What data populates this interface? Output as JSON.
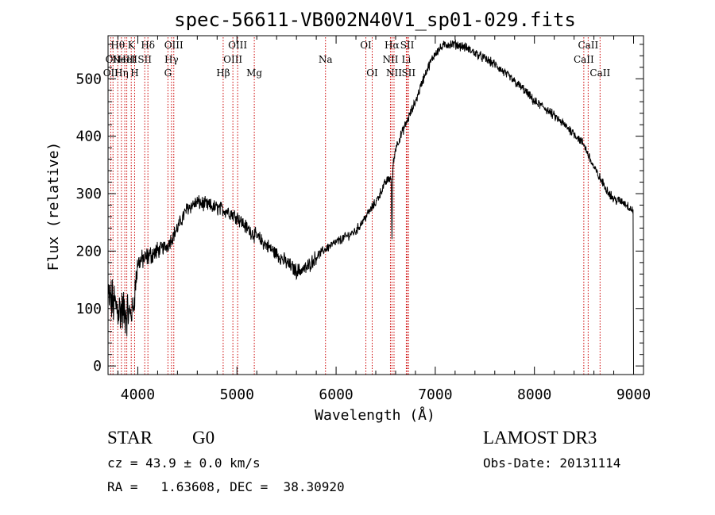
{
  "chart_data": {
    "type": "line",
    "title": "spec-56611-VB002N40V1_sp01-029.fits",
    "xlabel": "Wavelength (Å)",
    "ylabel": "Flux (relative)",
    "xlim": [
      3700,
      9100
    ],
    "ylim": [
      -15,
      575
    ],
    "xticks": [
      4000,
      5000,
      6000,
      7000,
      8000,
      9000
    ],
    "xtick_labels": [
      "4000",
      "5000",
      "6000",
      "7000",
      "8000",
      "9000"
    ],
    "yticks": [
      0,
      100,
      200,
      300,
      400,
      500
    ],
    "ytick_labels": [
      "0",
      "100",
      "200",
      "300",
      "400",
      "500"
    ],
    "spectrum_trend": {
      "x": [
        3700,
        3750,
        3800,
        3850,
        3900,
        3950,
        4000,
        4100,
        4200,
        4300,
        4400,
        4500,
        4600,
        4700,
        4800,
        4900,
        5000,
        5100,
        5200,
        5300,
        5400,
        5500,
        5600,
        5700,
        5800,
        5900,
        6000,
        6100,
        6200,
        6300,
        6400,
        6500,
        6560,
        6600,
        6700,
        6800,
        6900,
        7000,
        7100,
        7200,
        7300,
        7400,
        7500,
        7600,
        7700,
        7800,
        7900,
        8000,
        8100,
        8200,
        8300,
        8400,
        8500,
        8600,
        8700,
        8800,
        8900,
        9000
      ],
      "y": [
        120,
        110,
        100,
        95,
        90,
        95,
        180,
        190,
        200,
        210,
        240,
        275,
        285,
        280,
        275,
        270,
        260,
        240,
        225,
        210,
        195,
        180,
        165,
        170,
        190,
        205,
        215,
        225,
        235,
        260,
        285,
        320,
        330,
        380,
        420,
        460,
        510,
        545,
        560,
        560,
        555,
        545,
        535,
        525,
        510,
        495,
        480,
        460,
        450,
        435,
        420,
        405,
        385,
        345,
        315,
        290,
        285,
        270
      ]
    },
    "noise_amplitude_note": "high-frequency noise, strongest below 4000 Å",
    "absorption_features": [
      {
        "x": 6563,
        "depth": 110,
        "label": "Hα"
      }
    ],
    "spectral_lines": [
      {
        "x": 3727,
        "label": "OII",
        "row": 2
      },
      {
        "x": 3750,
        "label": "OII",
        "row": 1
      },
      {
        "x": 3798,
        "label": "Hθ",
        "row": 0
      },
      {
        "x": 3835,
        "label": "Hη",
        "row": 2
      },
      {
        "x": 3869,
        "label": "NeIII",
        "row": 1
      },
      {
        "x": 3889,
        "label": "HeI",
        "row": 1
      },
      {
        "x": 3934,
        "label": "K",
        "row": 0
      },
      {
        "x": 3968,
        "label": "H",
        "row": 2
      },
      {
        "x": 4070,
        "label": "SII",
        "row": 1
      },
      {
        "x": 4102,
        "label": "Hδ",
        "row": 0
      },
      {
        "x": 4304,
        "label": "G",
        "row": 2
      },
      {
        "x": 4340,
        "label": "Hγ",
        "row": 1
      },
      {
        "x": 4363,
        "label": "OIII",
        "row": 0
      },
      {
        "x": 4861,
        "label": "Hβ",
        "row": 2
      },
      {
        "x": 4959,
        "label": "OIII",
        "row": 1
      },
      {
        "x": 5007,
        "label": "OIII",
        "row": 0
      },
      {
        "x": 5175,
        "label": "Mg",
        "row": 2
      },
      {
        "x": 5893,
        "label": "Na",
        "row": 1
      },
      {
        "x": 6300,
        "label": "OI",
        "row": 0
      },
      {
        "x": 6364,
        "label": "OI",
        "row": 2
      },
      {
        "x": 6548,
        "label": "NII",
        "row": 1
      },
      {
        "x": 6563,
        "label": "Hα",
        "row": 0
      },
      {
        "x": 6584,
        "label": "NII",
        "row": 2
      },
      {
        "x": 6708,
        "label": "Li",
        "row": 1
      },
      {
        "x": 6717,
        "label": "SII",
        "row": 0
      },
      {
        "x": 6731,
        "label": "SII",
        "row": 2
      },
      {
        "x": 8498,
        "label": "CaII",
        "row": 1
      },
      {
        "x": 8542,
        "label": "CaII",
        "row": 0
      },
      {
        "x": 8662,
        "label": "CaII",
        "row": 2
      }
    ],
    "line_color": "#cc0000",
    "spectrum_color": "#000000"
  },
  "info": {
    "class_label": "STAR",
    "subclass": "G0",
    "survey": "LAMOST DR3",
    "cz_text": "cz = 43.9 ± 0.0 km/s",
    "obs_date_text": "Obs-Date: 20131114",
    "radec_text": "RA =   1.63608, DEC =  38.30920"
  }
}
